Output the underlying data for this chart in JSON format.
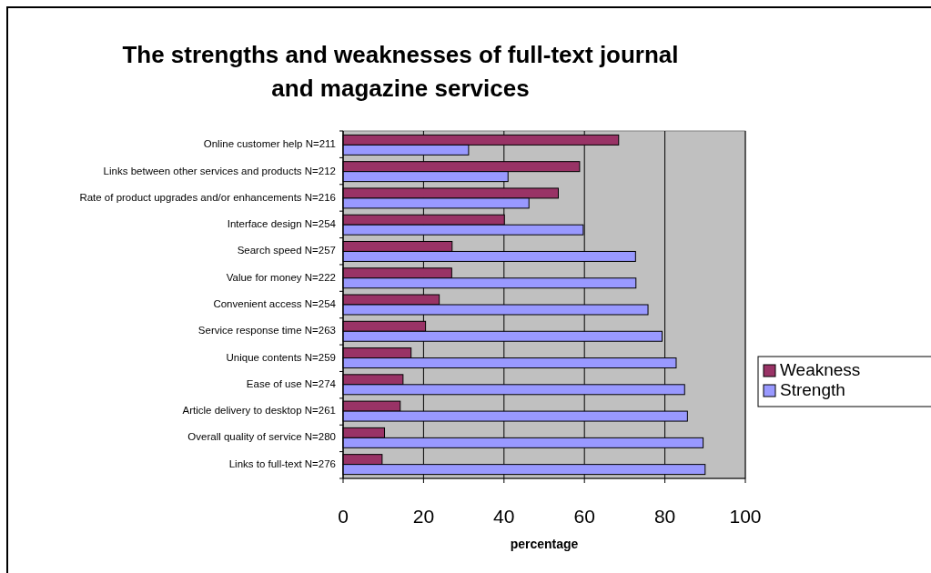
{
  "chart_data": {
    "type": "bar",
    "orientation": "horizontal",
    "title": "The strengths and weaknesses of full-text journal and magazine services",
    "xlabel": "percentage",
    "categories": [
      "Online customer help N=211",
      "Links between other services and products N=212",
      "Rate of product upgrades and/or enhancements N=216",
      "Interface design N=254",
      "Search speed N=257",
      "Value for money N=222",
      "Convenient access N=254",
      "Service response time N=263",
      "Unique contents N=259",
      "Ease of use N=274",
      "Article delivery to desktop N=261",
      "Overall quality of service N=280",
      "Links to full-text N=276"
    ],
    "series": [
      {
        "name": "Weakness",
        "color": "#993366",
        "values": [
          68.5,
          58.8,
          53.5,
          40.1,
          27.1,
          27.0,
          23.9,
          20.5,
          16.9,
          14.9,
          14.2,
          10.3,
          9.7
        ]
      },
      {
        "name": "Strength",
        "color": "#9999ff",
        "values": [
          31.2,
          41.0,
          46.2,
          59.7,
          72.7,
          72.8,
          75.8,
          79.3,
          82.8,
          84.9,
          85.6,
          89.5,
          90.0
        ]
      }
    ],
    "xlim": [
      0,
      100
    ],
    "xticks": [
      0,
      20,
      40,
      60,
      80,
      100
    ],
    "grid": "x",
    "legend": "right"
  }
}
